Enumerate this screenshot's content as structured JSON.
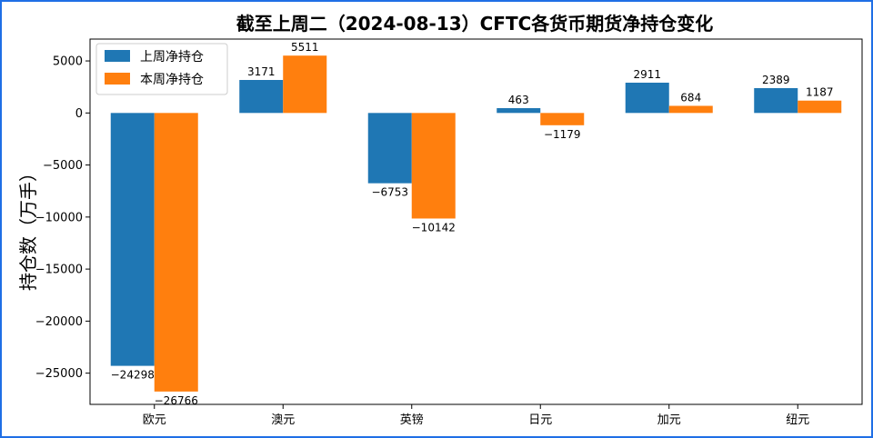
{
  "chart_data": {
    "type": "bar",
    "title": "截至上周二（2024-08-13）CFTC各货币期货净持仓变化",
    "xlabel": "",
    "ylabel": "持仓数（万手）",
    "categories": [
      "欧元",
      "澳元",
      "英镑",
      "日元",
      "加元",
      "纽元"
    ],
    "series": [
      {
        "name": "上周净持仓",
        "color": "#1f77b4",
        "values": [
          -24298,
          3171,
          -6753,
          463,
          2911,
          2389
        ]
      },
      {
        "name": "本周净持仓",
        "color": "#ff7f0e",
        "values": [
          -26766,
          5511,
          -10142,
          -1179,
          684,
          1187
        ]
      }
    ],
    "ylim": [
      -28000,
      7100
    ],
    "yticks": [
      5000,
      0,
      -5000,
      -10000,
      -15000,
      -20000,
      -25000
    ],
    "ytick_labels": [
      "5000",
      "0",
      "−5000",
      "−10000",
      "−15000",
      "−20000",
      "−25000"
    ],
    "legend_position": "upper-left",
    "grid": false
  }
}
